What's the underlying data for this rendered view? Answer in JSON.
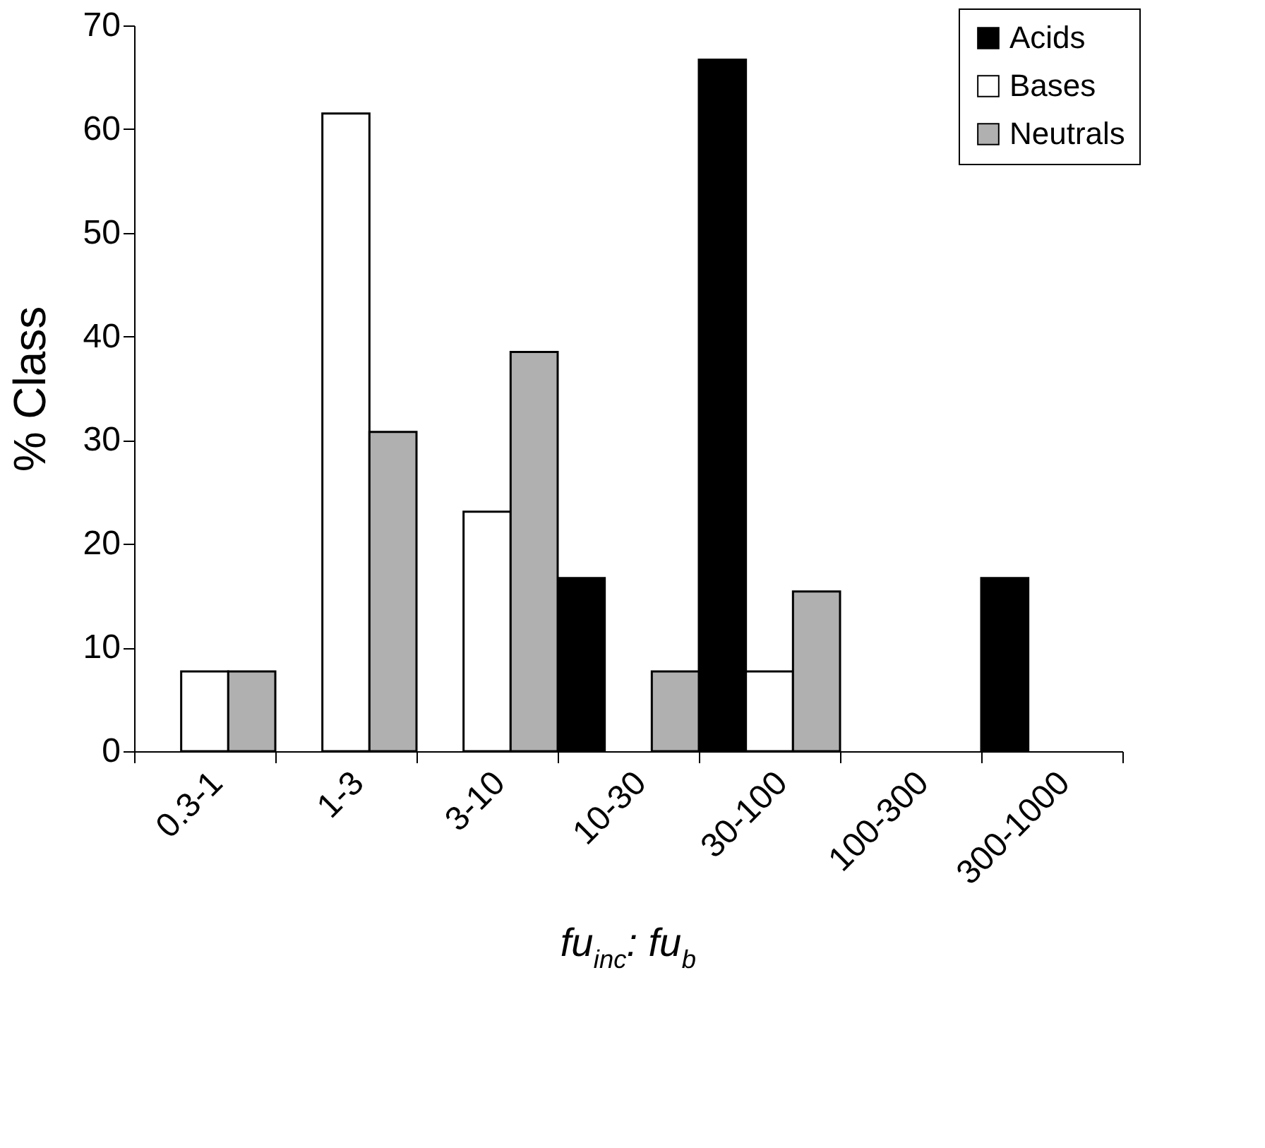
{
  "chart_data": {
    "type": "bar",
    "xlabel": "fu$_{inc}$: fu$_{b}$",
    "ylabel": "% Class",
    "categories": [
      "0.3-1",
      "1-3",
      "3-10",
      "10-30",
      "30-100",
      "100-300",
      "300-1000"
    ],
    "series": [
      {
        "name": "Acids",
        "color": "#000000",
        "values": [
          null,
          null,
          null,
          16.7,
          66.7,
          null,
          16.7
        ]
      },
      {
        "name": "Bases",
        "color": "#ffffff",
        "values": [
          7.7,
          61.5,
          23.1,
          null,
          7.7,
          null,
          null
        ]
      },
      {
        "name": "Neutrals",
        "color": "#b0b0b0",
        "values": [
          7.7,
          30.8,
          38.5,
          7.7,
          15.4,
          null,
          null
        ]
      }
    ],
    "ylim": [
      0,
      70
    ],
    "yticks": [
      0,
      10,
      20,
      30,
      40,
      50,
      60,
      70
    ],
    "grid": false,
    "legend": "top right"
  }
}
